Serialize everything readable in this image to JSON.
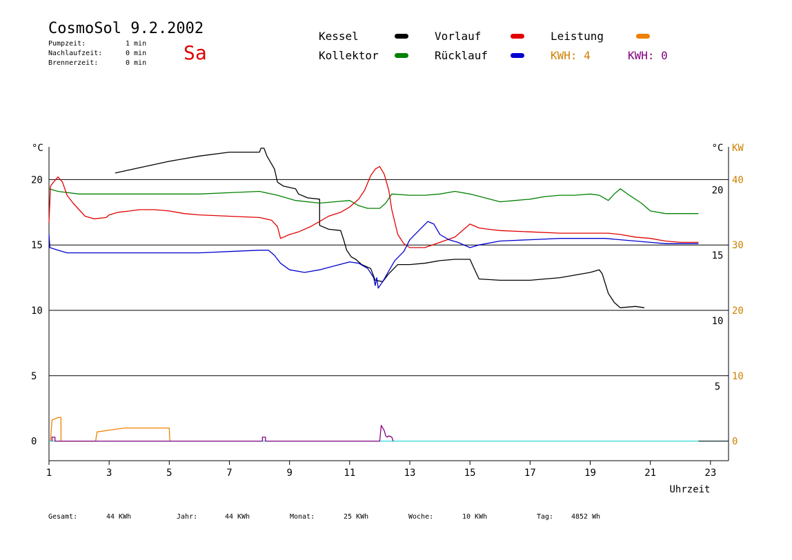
{
  "header": {
    "title": "CosmoSol 9.2.2002",
    "day": "Sa",
    "stats": [
      {
        "label": "Pumpzeit:",
        "value": "1 min"
      },
      {
        "label": "Nachlaufzeit:",
        "value": "0 min"
      },
      {
        "label": "Brennerzeit:",
        "value": "0 min"
      }
    ]
  },
  "legend": {
    "kessel": "Kessel",
    "kollektor": "Kollektor",
    "vorlauf": "Vorlauf",
    "ruecklauf": "Rücklauf",
    "leistung": "Leistung",
    "kwh1": "KWH: 4",
    "kwh2": "KWH: 0"
  },
  "colors": {
    "kessel": "#000000",
    "kollektor": "#008000",
    "vorlauf": "#e00000",
    "ruecklauf": "#0000d0",
    "leistung": "#f08000",
    "leistung_text": "#d08000",
    "kwh2": "#800080",
    "baseline": "#00d0d0"
  },
  "footer": {
    "gesamt_label": "Gesamt:",
    "gesamt_value": "44 KWh",
    "jahr_label": "Jahr:",
    "jahr_value": "44 KWh",
    "monat_label": "Monat:",
    "monat_value": "25 KWh",
    "woche_label": "Woche:",
    "woche_value": "10 KWh",
    "tag_label": "Tag:",
    "tag_value": "4852 Wh"
  },
  "chart_data": {
    "type": "line",
    "xlabel": "Uhrzeit",
    "ylabel_left": "°C",
    "ylabel_right": "°C",
    "ylabel_right2": "KW",
    "xlim": [
      1,
      23.6
    ],
    "xticks": [
      1,
      3,
      5,
      7,
      9,
      11,
      13,
      15,
      17,
      19,
      21,
      23
    ],
    "ylim_left": [
      -1.5,
      22.5
    ],
    "yticks_left": [
      0,
      5,
      10,
      15,
      20
    ],
    "yticks_right": [
      5,
      10,
      15,
      20
    ],
    "yticks_right2": [
      0,
      10,
      20,
      30,
      40
    ],
    "grid_y": [
      0,
      5,
      10,
      15,
      20
    ],
    "series": [
      {
        "name": "Kessel",
        "key": "kessel",
        "points": [
          [
            3.2,
            20.5
          ],
          [
            4,
            20.9
          ],
          [
            5,
            21.4
          ],
          [
            6,
            21.8
          ],
          [
            7,
            22.1
          ],
          [
            8,
            22.1
          ],
          [
            8.05,
            22.4
          ],
          [
            8.15,
            22.4
          ],
          [
            8.25,
            21.8
          ],
          [
            8.4,
            21.2
          ],
          [
            8.5,
            20.8
          ],
          [
            8.6,
            19.8
          ],
          [
            8.8,
            19.5
          ],
          [
            9.2,
            19.3
          ],
          [
            9.3,
            18.9
          ],
          [
            9.6,
            18.6
          ],
          [
            10,
            18.5
          ],
          [
            10,
            16.5
          ],
          [
            10.3,
            16.2
          ],
          [
            10.7,
            16.1
          ],
          [
            10.8,
            15.4
          ],
          [
            10.9,
            14.6
          ],
          [
            11.05,
            14.1
          ],
          [
            11.2,
            13.9
          ],
          [
            11.4,
            13.5
          ],
          [
            11.7,
            13.2
          ],
          [
            11.85,
            12.3
          ],
          [
            12.1,
            12.2
          ],
          [
            12.3,
            12.8
          ],
          [
            12.6,
            13.5
          ],
          [
            13,
            13.5
          ],
          [
            13.5,
            13.6
          ],
          [
            14,
            13.8
          ],
          [
            14.5,
            13.9
          ],
          [
            15,
            13.9
          ],
          [
            15.1,
            13.4
          ],
          [
            15.3,
            12.4
          ],
          [
            16,
            12.3
          ],
          [
            17,
            12.3
          ],
          [
            18,
            12.5
          ],
          [
            19,
            12.9
          ],
          [
            19.3,
            13.1
          ],
          [
            19.4,
            12.8
          ],
          [
            19.6,
            11.3
          ],
          [
            19.8,
            10.6
          ],
          [
            20,
            10.2
          ],
          [
            20.5,
            10.3
          ],
          [
            20.8,
            10.2
          ]
        ]
      },
      {
        "name": "Kollektor",
        "key": "kollektor",
        "points": [
          [
            1,
            19.3
          ],
          [
            1.3,
            19.1
          ],
          [
            2,
            18.9
          ],
          [
            3,
            18.9
          ],
          [
            4,
            18.9
          ],
          [
            5,
            18.9
          ],
          [
            6,
            18.9
          ],
          [
            7,
            19
          ],
          [
            8,
            19.1
          ],
          [
            8.6,
            18.8
          ],
          [
            9.2,
            18.4
          ],
          [
            10,
            18.2
          ],
          [
            10.5,
            18.3
          ],
          [
            11,
            18.4
          ],
          [
            11.3,
            18
          ],
          [
            11.6,
            17.8
          ],
          [
            12,
            17.8
          ],
          [
            12.2,
            18.2
          ],
          [
            12.4,
            18.9
          ],
          [
            13,
            18.8
          ],
          [
            13.5,
            18.8
          ],
          [
            14,
            18.9
          ],
          [
            14.5,
            19.1
          ],
          [
            15,
            18.9
          ],
          [
            15.5,
            18.6
          ],
          [
            16,
            18.3
          ],
          [
            16.5,
            18.4
          ],
          [
            17,
            18.5
          ],
          [
            17.5,
            18.7
          ],
          [
            18,
            18.8
          ],
          [
            18.5,
            18.8
          ],
          [
            19,
            18.9
          ],
          [
            19.3,
            18.8
          ],
          [
            19.6,
            18.4
          ],
          [
            19.8,
            18.9
          ],
          [
            20,
            19.3
          ],
          [
            20.3,
            18.8
          ],
          [
            20.7,
            18.2
          ],
          [
            21,
            17.6
          ],
          [
            21.5,
            17.4
          ],
          [
            22,
            17.4
          ],
          [
            22.6,
            17.4
          ]
        ]
      },
      {
        "name": "Vorlauf",
        "key": "vorlauf",
        "points": [
          [
            1,
            16.7
          ],
          [
            1.05,
            19.5
          ],
          [
            1.15,
            19.8
          ],
          [
            1.3,
            20.2
          ],
          [
            1.45,
            19.8
          ],
          [
            1.6,
            18.8
          ],
          [
            1.8,
            18.2
          ],
          [
            2,
            17.7
          ],
          [
            2.2,
            17.2
          ],
          [
            2.5,
            17
          ],
          [
            2.9,
            17.1
          ],
          [
            3,
            17.3
          ],
          [
            3.3,
            17.5
          ],
          [
            3.7,
            17.6
          ],
          [
            4,
            17.7
          ],
          [
            4.5,
            17.7
          ],
          [
            5,
            17.6
          ],
          [
            5.5,
            17.4
          ],
          [
            6,
            17.3
          ],
          [
            7,
            17.2
          ],
          [
            8,
            17.1
          ],
          [
            8.4,
            16.9
          ],
          [
            8.6,
            16.4
          ],
          [
            8.7,
            15.5
          ],
          [
            9,
            15.8
          ],
          [
            9.3,
            16
          ],
          [
            9.7,
            16.4
          ],
          [
            10,
            16.8
          ],
          [
            10.3,
            17.2
          ],
          [
            10.7,
            17.5
          ],
          [
            11,
            17.9
          ],
          [
            11.3,
            18.5
          ],
          [
            11.5,
            19.2
          ],
          [
            11.7,
            20.3
          ],
          [
            11.85,
            20.8
          ],
          [
            12,
            21
          ],
          [
            12.15,
            20.4
          ],
          [
            12.3,
            19.2
          ],
          [
            12.4,
            17.7
          ],
          [
            12.6,
            15.8
          ],
          [
            12.8,
            15.1
          ],
          [
            13,
            14.8
          ],
          [
            13.5,
            14.8
          ],
          [
            14,
            15.2
          ],
          [
            14.5,
            15.6
          ],
          [
            14.8,
            16.2
          ],
          [
            15,
            16.6
          ],
          [
            15.3,
            16.3
          ],
          [
            15.6,
            16.2
          ],
          [
            16,
            16.1
          ],
          [
            17,
            16
          ],
          [
            18,
            15.9
          ],
          [
            19,
            15.9
          ],
          [
            19.6,
            15.9
          ],
          [
            20,
            15.8
          ],
          [
            20.5,
            15.6
          ],
          [
            21,
            15.5
          ],
          [
            21.5,
            15.3
          ],
          [
            22,
            15.2
          ],
          [
            22.6,
            15.2
          ]
        ]
      },
      {
        "name": "Rücklauf",
        "key": "ruecklauf",
        "points": [
          [
            1,
            15.8
          ],
          [
            1.03,
            14.8
          ],
          [
            1.3,
            14.6
          ],
          [
            1.6,
            14.4
          ],
          [
            2,
            14.4
          ],
          [
            3,
            14.4
          ],
          [
            4,
            14.4
          ],
          [
            5,
            14.4
          ],
          [
            6,
            14.4
          ],
          [
            7,
            14.5
          ],
          [
            8,
            14.6
          ],
          [
            8.3,
            14.6
          ],
          [
            8.5,
            14.2
          ],
          [
            8.7,
            13.6
          ],
          [
            9,
            13.1
          ],
          [
            9.5,
            12.9
          ],
          [
            10,
            13.1
          ],
          [
            10.5,
            13.4
          ],
          [
            11,
            13.7
          ],
          [
            11.3,
            13.6
          ],
          [
            11.6,
            13.2
          ],
          [
            11.8,
            12.5
          ],
          [
            11.85,
            11.9
          ],
          [
            11.9,
            12.5
          ],
          [
            11.95,
            11.7
          ],
          [
            12.1,
            12.2
          ],
          [
            12.3,
            13
          ],
          [
            12.5,
            13.8
          ],
          [
            12.8,
            14.5
          ],
          [
            13,
            15.4
          ],
          [
            13.3,
            16.1
          ],
          [
            13.6,
            16.8
          ],
          [
            13.8,
            16.6
          ],
          [
            14,
            15.8
          ],
          [
            14.3,
            15.4
          ],
          [
            14.6,
            15.2
          ],
          [
            15,
            14.8
          ],
          [
            15.3,
            15
          ],
          [
            16,
            15.3
          ],
          [
            17,
            15.4
          ],
          [
            18,
            15.5
          ],
          [
            19,
            15.5
          ],
          [
            19.5,
            15.5
          ],
          [
            20,
            15.4
          ],
          [
            20.5,
            15.3
          ],
          [
            21,
            15.2
          ],
          [
            21.5,
            15.1
          ],
          [
            22,
            15.1
          ],
          [
            22.6,
            15.1
          ]
        ]
      },
      {
        "name": "Leistung",
        "key": "leistung",
        "points": [
          [
            1.05,
            0
          ],
          [
            1.1,
            1.6
          ],
          [
            1.2,
            1.7
          ],
          [
            1.3,
            1.8
          ],
          [
            1.4,
            1.8
          ],
          [
            1.4,
            0
          ],
          [
            2.55,
            0
          ],
          [
            2.6,
            0.7
          ],
          [
            2.9,
            0.8
          ],
          [
            3.2,
            0.9
          ],
          [
            3.5,
            1
          ],
          [
            5,
            1
          ],
          [
            5.02,
            0
          ]
        ]
      },
      {
        "name": "KWH: 0",
        "key": "kwh2",
        "points": [
          [
            1.1,
            0
          ],
          [
            1.1,
            0.3
          ],
          [
            1.2,
            0.3
          ],
          [
            1.2,
            0
          ],
          [
            8.1,
            0
          ],
          [
            8.1,
            0.3
          ],
          [
            8.2,
            0.3
          ],
          [
            8.2,
            0
          ],
          [
            12,
            0
          ],
          [
            12.05,
            1.2
          ],
          [
            12.15,
            0.8
          ],
          [
            12.2,
            0.4
          ],
          [
            12.25,
            0.3
          ],
          [
            12.3,
            0.4
          ],
          [
            12.4,
            0.3
          ],
          [
            12.45,
            0
          ]
        ]
      }
    ]
  }
}
